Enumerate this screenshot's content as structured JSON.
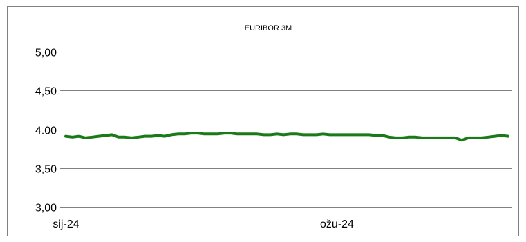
{
  "chart_data": {
    "type": "line",
    "title": "EURIBOR 3M",
    "xlabel": "",
    "ylabel": "",
    "ylim": [
      3.0,
      5.0
    ],
    "y_ticks": [
      "5,00",
      "4,50",
      "4.00",
      "3,50",
      "3,00"
    ],
    "y_tick_values": [
      5.0,
      4.5,
      4.0,
      3.5,
      3.0
    ],
    "x_tick_labels": [
      {
        "label": "sij-24",
        "index": 0
      },
      {
        "label": "ožu-24",
        "index": 41
      }
    ],
    "grid": true,
    "legend": "none",
    "series": [
      {
        "color": "#1a7a1a",
        "values": [
          3.91,
          3.9,
          3.91,
          3.89,
          3.9,
          3.91,
          3.92,
          3.93,
          3.9,
          3.9,
          3.89,
          3.9,
          3.91,
          3.91,
          3.92,
          3.91,
          3.93,
          3.94,
          3.94,
          3.95,
          3.95,
          3.94,
          3.94,
          3.94,
          3.95,
          3.95,
          3.94,
          3.94,
          3.94,
          3.94,
          3.93,
          3.93,
          3.94,
          3.93,
          3.94,
          3.94,
          3.93,
          3.93,
          3.93,
          3.94,
          3.93,
          3.93,
          3.93,
          3.93,
          3.93,
          3.93,
          3.93,
          3.92,
          3.92,
          3.9,
          3.89,
          3.89,
          3.9,
          3.9,
          3.89,
          3.89,
          3.89,
          3.89,
          3.89,
          3.89,
          3.86,
          3.89,
          3.89,
          3.89,
          3.9,
          3.91,
          3.92,
          3.91
        ]
      }
    ]
  }
}
